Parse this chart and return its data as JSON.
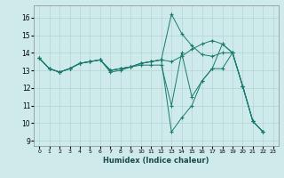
{
  "xlabel": "Humidex (Indice chaleur)",
  "bg_color": "#ceeaea",
  "grid_color": "#b8d8d8",
  "line_color": "#1a7a6e",
  "xlim": [
    -0.5,
    23.5
  ],
  "ylim": [
    8.7,
    16.7
  ],
  "xticks": [
    0,
    1,
    2,
    3,
    4,
    5,
    6,
    7,
    8,
    9,
    10,
    11,
    12,
    13,
    14,
    15,
    16,
    17,
    18,
    19,
    20,
    21,
    22,
    23
  ],
  "yticks": [
    9,
    10,
    11,
    12,
    13,
    14,
    15,
    16
  ],
  "series": [
    [
      13.7,
      13.1,
      12.9,
      13.1,
      13.4,
      13.5,
      13.6,
      13.0,
      13.1,
      13.2,
      13.4,
      13.5,
      13.6,
      16.2,
      15.1,
      14.4,
      13.9,
      13.8,
      14.0,
      14.0,
      12.1,
      10.1,
      9.5
    ],
    [
      13.7,
      13.1,
      12.9,
      13.1,
      13.4,
      13.5,
      13.6,
      13.0,
      13.1,
      13.2,
      13.4,
      13.5,
      13.6,
      13.5,
      13.8,
      14.2,
      14.5,
      14.7,
      14.5,
      14.0,
      12.1,
      10.1,
      9.5
    ],
    [
      13.7,
      13.1,
      12.9,
      13.1,
      13.4,
      13.5,
      13.6,
      12.9,
      13.0,
      13.2,
      13.4,
      13.5,
      13.6,
      9.5,
      10.3,
      11.0,
      12.4,
      13.1,
      13.1,
      14.0,
      12.1,
      10.1,
      9.5
    ],
    [
      13.7,
      13.1,
      12.9,
      13.1,
      13.4,
      13.5,
      13.6,
      13.0,
      13.1,
      13.2,
      13.3,
      13.3,
      13.3,
      11.0,
      14.0,
      11.5,
      12.4,
      13.1,
      14.5,
      14.0,
      12.1,
      10.1,
      9.5
    ]
  ]
}
